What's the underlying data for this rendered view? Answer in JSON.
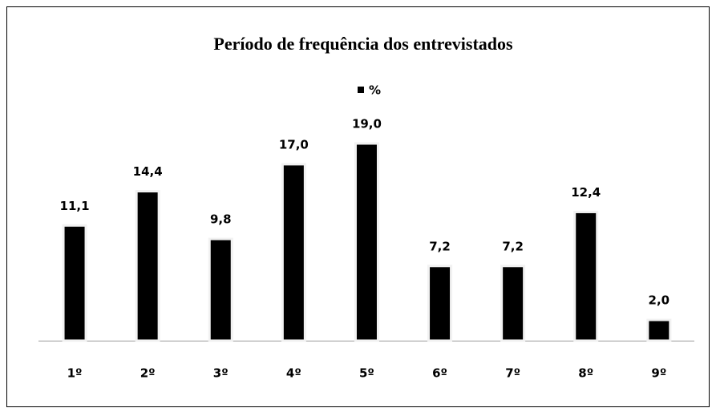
{
  "chart_data": {
    "type": "bar",
    "title": "Período de frequência dos entrevistados",
    "categories": [
      "1º",
      "2º",
      "3º",
      "4º",
      "5º",
      "6º",
      "7º",
      "8º",
      "9º"
    ],
    "series": [
      {
        "name": "%",
        "color": "#000000",
        "values": [
          11.1,
          14.4,
          9.8,
          17.0,
          19.0,
          7.2,
          7.2,
          12.4,
          2.0
        ],
        "value_labels": [
          "11,1",
          "14,4",
          "9,8",
          "17,0",
          "19,0",
          "7,2",
          "7,2",
          "12,4",
          "2,0"
        ]
      }
    ],
    "legend": "top"
  }
}
